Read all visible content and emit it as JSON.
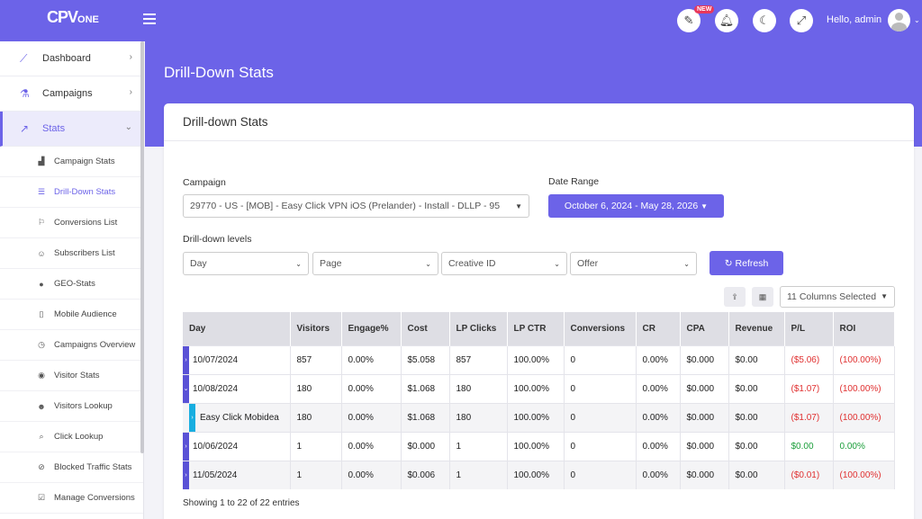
{
  "app": {
    "logo_main": "CPV",
    "logo_sub": "ONE",
    "greeting": "Hello, admin",
    "new_badge": "NEW"
  },
  "sidebar": {
    "main": [
      {
        "label": "Dashboard",
        "icon": "chart-line-icon"
      },
      {
        "label": "Campaigns",
        "icon": "flask-icon"
      },
      {
        "label": "Stats",
        "icon": "stats-icon"
      }
    ],
    "sub": [
      {
        "label": "Campaign Stats",
        "icon": "area-chart-icon"
      },
      {
        "label": "Drill-Down Stats",
        "icon": "list-icon"
      },
      {
        "label": "Conversions List",
        "icon": "flag-icon"
      },
      {
        "label": "Subscribers List",
        "icon": "user-icon"
      },
      {
        "label": "GEO-Stats",
        "icon": "globe-icon"
      },
      {
        "label": "Mobile Audience",
        "icon": "mobile-icon"
      },
      {
        "label": "Campaigns Overview",
        "icon": "clock-icon"
      },
      {
        "label": "Visitor Stats",
        "icon": "eye-icon"
      },
      {
        "label": "Visitors Lookup",
        "icon": "user-search-icon"
      },
      {
        "label": "Click Lookup",
        "icon": "search-icon"
      },
      {
        "label": "Blocked Traffic Stats",
        "icon": "ban-icon"
      },
      {
        "label": "Manage Conversions",
        "icon": "check-square-icon"
      }
    ]
  },
  "page": {
    "title": "Drill-Down Stats",
    "card_title": "Drill-down Stats"
  },
  "filters": {
    "campaign_label": "Campaign",
    "campaign_value": "29770 - US - [MOB] - Easy Click VPN iOS (Prelander) - Install  -  DLLP  -  95",
    "date_label": "Date Range",
    "date_value": "October 6, 2024 - May 28, 2026",
    "levels_label": "Drill-down levels",
    "levels": [
      "Day",
      "Page",
      "Creative ID",
      "Offer"
    ],
    "refresh_label": "Refresh",
    "columns_selected": "11 Columns Selected"
  },
  "table": {
    "headers": [
      "Day",
      "Visitors",
      "Engage%",
      "Cost",
      "LP Clicks",
      "LP CTR",
      "Conversions",
      "CR",
      "CPA",
      "Revenue",
      "P/L",
      "ROI"
    ],
    "rows": [
      {
        "marker": "›",
        "cells": [
          "10/07/2024",
          "857",
          "0.00%",
          "$5.058",
          "857",
          "100.00%",
          "0",
          "0.00%",
          "$0.000",
          "$0.00",
          "($5.06)",
          "(100.00%)"
        ]
      },
      {
        "marker": "⌄",
        "cells": [
          "10/08/2024",
          "180",
          "0.00%",
          "$1.068",
          "180",
          "100.00%",
          "0",
          "0.00%",
          "$0.000",
          "$0.00",
          "($1.07)",
          "(100.00%)"
        ]
      },
      {
        "marker": "›",
        "cells": [
          "Easy Click Mobidea",
          "180",
          "0.00%",
          "$1.068",
          "180",
          "100.00%",
          "0",
          "0.00%",
          "$0.000",
          "$0.00",
          "($1.07)",
          "(100.00%)"
        ]
      },
      {
        "marker": "›",
        "cells": [
          "10/06/2024",
          "1",
          "0.00%",
          "$0.000",
          "1",
          "100.00%",
          "0",
          "0.00%",
          "$0.000",
          "$0.00",
          "$0.00",
          "0.00%"
        ]
      },
      {
        "marker": "›",
        "cells": [
          "11/05/2024",
          "1",
          "0.00%",
          "$0.006",
          "1",
          "100.00%",
          "0",
          "0.00%",
          "$0.000",
          "$0.00",
          "($0.01)",
          "(100.00%)"
        ]
      }
    ],
    "info": "Showing 1 to 22 of 22 entries"
  },
  "colors": {
    "accent": "#6c63e8",
    "child_marker": "#18aee0",
    "negative": "#e03030",
    "positive": "#1a9e3a"
  }
}
